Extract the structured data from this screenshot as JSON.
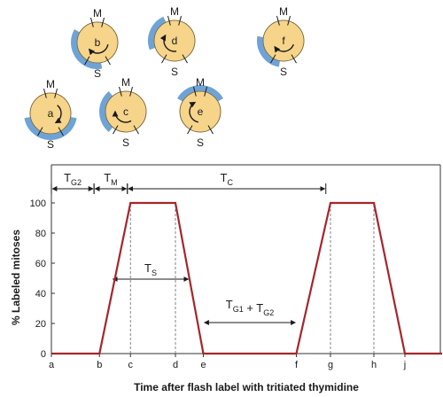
{
  "colors": {
    "curve": "#a4262c",
    "cell_fill": "#f6d48a",
    "cell_stroke": "#7a6a40",
    "label_band": "#6fa3d6",
    "axis": "#333333",
    "dashed": "#777777"
  },
  "cells": [
    {
      "id": "a",
      "m_label": "M",
      "s_label": "S"
    },
    {
      "id": "b",
      "m_label": "M",
      "s_label": "S"
    },
    {
      "id": "c",
      "m_label": "M",
      "s_label": "S"
    },
    {
      "id": "d",
      "m_label": "M",
      "s_label": "S"
    },
    {
      "id": "e",
      "m_label": "M",
      "s_label": "S"
    },
    {
      "id": "f",
      "m_label": "M",
      "s_label": "S"
    }
  ],
  "chart_data": {
    "type": "line",
    "xlabel": "Time after flash label with tritiated thymidine",
    "ylabel": "% Labeled mitoses",
    "ylim": [
      0,
      100
    ],
    "yticks": [
      0,
      20,
      40,
      60,
      80,
      100
    ],
    "grid": false,
    "time_points": [
      "a",
      "b",
      "c",
      "d",
      "e",
      "f",
      "g",
      "h",
      "j"
    ],
    "x": [
      0,
      3.1,
      5.1,
      8.0,
      9.8,
      15.8,
      18.0,
      20.8,
      22.8,
      25.2
    ],
    "series": [
      {
        "values": [
          0,
          0,
          100,
          100,
          0,
          0,
          100,
          100,
          0,
          0
        ]
      }
    ],
    "intervals": {
      "tg2": {
        "label": "T",
        "sub": "G2",
        "from": 0,
        "to": 2.75
      },
      "tm": {
        "label": "T",
        "sub": "M",
        "from": 2.75,
        "to": 4.9
      },
      "tc": {
        "label": "T",
        "sub": "C",
        "from": 4.9,
        "to": 17.7
      },
      "ts": {
        "label": "T",
        "sub": "S",
        "from": 3.9,
        "to": 8.9
      },
      "tg1g2": {
        "label1": "T",
        "sub1": "G1",
        "plus": "+",
        "label2": "T",
        "sub2": "G2",
        "from": 9.8,
        "to": 15.8
      }
    }
  }
}
